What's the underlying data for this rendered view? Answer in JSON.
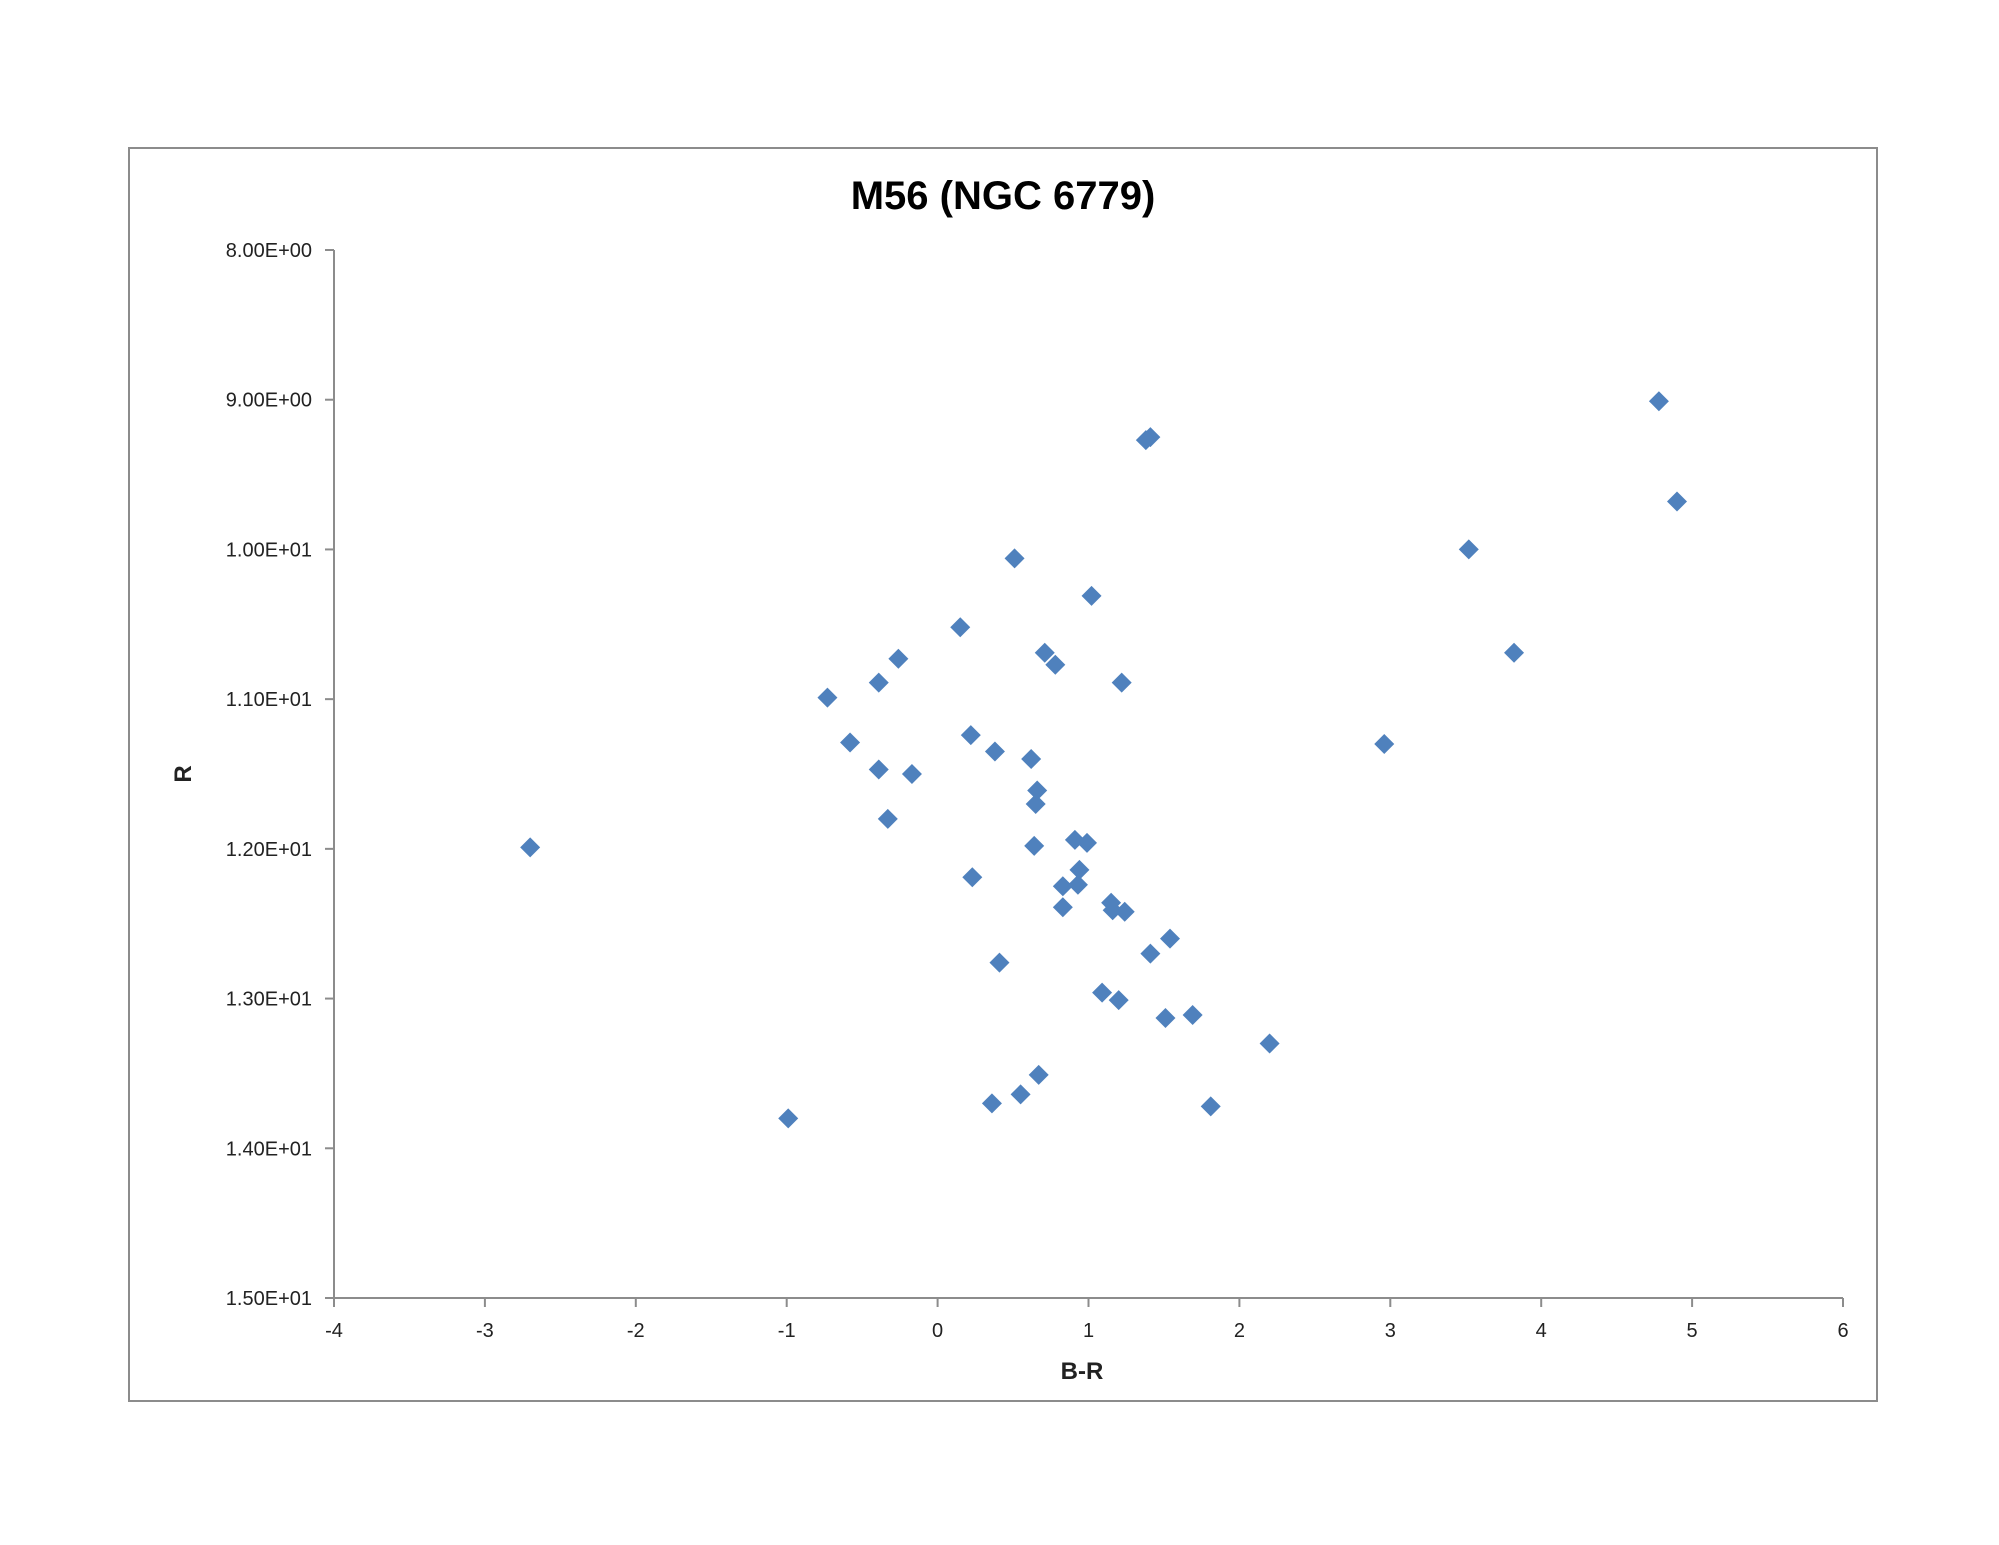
{
  "chart_data": {
    "type": "scatter",
    "title": "M56 (NGC 6779)",
    "xlabel": "B-R",
    "ylabel": "R",
    "xlim": [
      -4,
      6
    ],
    "ylim": [
      8.0,
      15.0
    ],
    "y_inverted": true,
    "grid": false,
    "legend": "none",
    "marker": "diamond",
    "marker_color": "#4F81BD",
    "x_ticks": [
      -4,
      -3,
      -2,
      -1,
      0,
      1,
      2,
      3,
      4,
      5,
      6
    ],
    "x_tick_labels": [
      "-4",
      "-3",
      "-2",
      "-1",
      "0",
      "1",
      "2",
      "3",
      "4",
      "5",
      "6"
    ],
    "y_ticks": [
      8.0,
      9.0,
      10.0,
      11.0,
      12.0,
      13.0,
      14.0,
      15.0
    ],
    "y_tick_labels": [
      "8.00E+00",
      "9.00E+00",
      "1.00E+01",
      "1.10E+01",
      "1.20E+01",
      "1.30E+01",
      "1.40E+01",
      "1.50E+01"
    ],
    "series": [
      {
        "points": [
          {
            "x": 4.78,
            "y": 9.01
          },
          {
            "x": 1.41,
            "y": 9.25
          },
          {
            "x": 1.38,
            "y": 9.27
          },
          {
            "x": 4.9,
            "y": 9.68
          },
          {
            "x": 3.52,
            "y": 10.0
          },
          {
            "x": 0.51,
            "y": 10.06
          },
          {
            "x": 1.02,
            "y": 10.31
          },
          {
            "x": 0.15,
            "y": 10.52
          },
          {
            "x": 0.71,
            "y": 10.69
          },
          {
            "x": 3.82,
            "y": 10.69
          },
          {
            "x": -0.26,
            "y": 10.73
          },
          {
            "x": 0.78,
            "y": 10.77
          },
          {
            "x": -0.39,
            "y": 10.89
          },
          {
            "x": 1.22,
            "y": 10.89
          },
          {
            "x": -0.73,
            "y": 10.99
          },
          {
            "x": 0.22,
            "y": 11.24
          },
          {
            "x": -0.58,
            "y": 11.29
          },
          {
            "x": 2.96,
            "y": 11.3
          },
          {
            "x": 0.38,
            "y": 11.35
          },
          {
            "x": 0.62,
            "y": 11.4
          },
          {
            "x": -0.39,
            "y": 11.47
          },
          {
            "x": -0.17,
            "y": 11.5
          },
          {
            "x": 0.66,
            "y": 11.61
          },
          {
            "x": 0.65,
            "y": 11.7
          },
          {
            "x": -0.33,
            "y": 11.8
          },
          {
            "x": 0.91,
            "y": 11.94
          },
          {
            "x": 0.99,
            "y": 11.96
          },
          {
            "x": -2.7,
            "y": 11.99
          },
          {
            "x": 0.64,
            "y": 11.98
          },
          {
            "x": 0.94,
            "y": 12.14
          },
          {
            "x": 0.23,
            "y": 12.19
          },
          {
            "x": 0.83,
            "y": 12.25
          },
          {
            "x": 0.93,
            "y": 12.24
          },
          {
            "x": 1.15,
            "y": 12.36
          },
          {
            "x": 1.16,
            "y": 12.41
          },
          {
            "x": 1.24,
            "y": 12.42
          },
          {
            "x": 0.83,
            "y": 12.39
          },
          {
            "x": 1.54,
            "y": 12.6
          },
          {
            "x": 1.41,
            "y": 12.7
          },
          {
            "x": 0.41,
            "y": 12.76
          },
          {
            "x": 1.09,
            "y": 12.96
          },
          {
            "x": 1.2,
            "y": 13.01
          },
          {
            "x": 1.69,
            "y": 13.11
          },
          {
            "x": 1.51,
            "y": 13.13
          },
          {
            "x": 2.2,
            "y": 13.3
          },
          {
            "x": 0.67,
            "y": 13.51
          },
          {
            "x": 0.55,
            "y": 13.64
          },
          {
            "x": 0.36,
            "y": 13.7
          },
          {
            "x": 1.81,
            "y": 13.72
          },
          {
            "x": -0.99,
            "y": 13.8
          }
        ]
      }
    ]
  }
}
